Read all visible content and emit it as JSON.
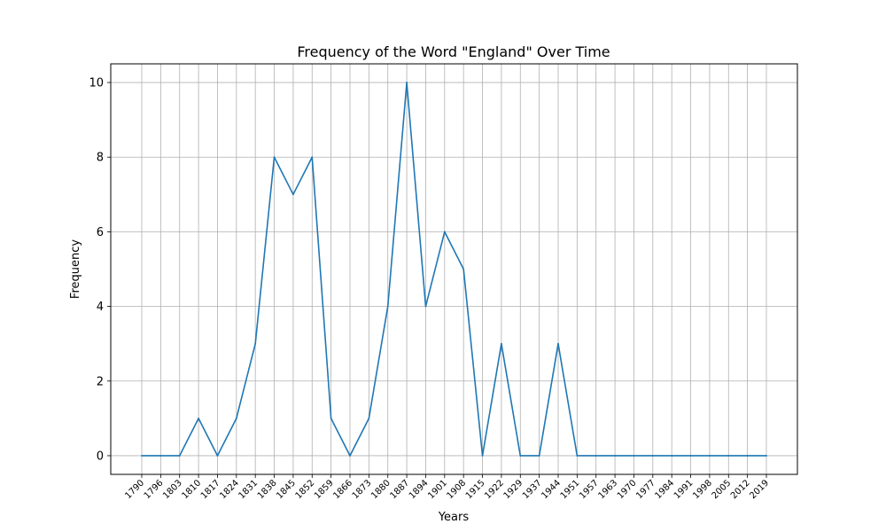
{
  "chart_data": {
    "type": "line",
    "title": "Frequency of the Word \"England\" Over Time",
    "xlabel": "Years",
    "ylabel": "Frequency",
    "x": [
      "1790",
      "1796",
      "1803",
      "1810",
      "1817",
      "1824",
      "1831",
      "1838",
      "1845",
      "1852",
      "1859",
      "1866",
      "1873",
      "1880",
      "1887",
      "1894",
      "1901",
      "1908",
      "1915",
      "1922",
      "1929",
      "1937",
      "1944",
      "1951",
      "1957",
      "1963",
      "1970",
      "1977",
      "1984",
      "1991",
      "1998",
      "2005",
      "2012",
      "2019"
    ],
    "series": [
      {
        "color": "#1f77b4",
        "values": [
          0,
          0,
          0,
          1,
          0,
          1,
          3,
          8,
          7,
          8,
          1,
          0,
          1,
          4,
          10,
          4,
          6,
          5,
          0,
          3,
          0,
          0,
          3,
          0,
          0,
          0,
          0,
          0,
          0,
          0,
          0,
          0,
          0,
          0
        ]
      }
    ],
    "yticks": [
      0,
      2,
      4,
      6,
      8,
      10
    ],
    "ylim": [
      -0.5,
      10.5
    ],
    "grid": true,
    "legend": "none"
  }
}
